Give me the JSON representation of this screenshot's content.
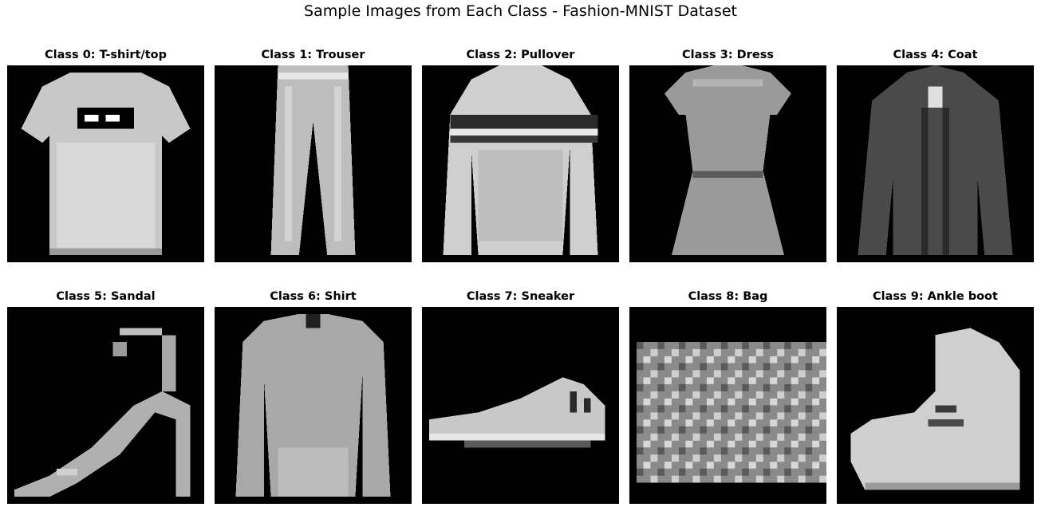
{
  "figure": {
    "title": "Sample Images from Each Class - Fashion-MNIST Dataset"
  },
  "panels": [
    {
      "title": "Class 0: T-shirt/top",
      "icon": "tshirt-image"
    },
    {
      "title": "Class 1: Trouser",
      "icon": "trouser-image"
    },
    {
      "title": "Class 2: Pullover",
      "icon": "pullover-image"
    },
    {
      "title": "Class 3: Dress",
      "icon": "dress-image"
    },
    {
      "title": "Class 4: Coat",
      "icon": "coat-image"
    },
    {
      "title": "Class 5: Sandal",
      "icon": "sandal-image"
    },
    {
      "title": "Class 6: Shirt",
      "icon": "shirt-image"
    },
    {
      "title": "Class 7: Sneaker",
      "icon": "sneaker-image"
    },
    {
      "title": "Class 8: Bag",
      "icon": "bag-image"
    },
    {
      "title": "Class 9: Ankle boot",
      "icon": "ankle-boot-image"
    }
  ],
  "colors": {
    "background": "#000000",
    "garment_light": "#d6d6d6",
    "garment_mid": "#8c8c8c",
    "garment_dark": "#3a3a3a"
  }
}
